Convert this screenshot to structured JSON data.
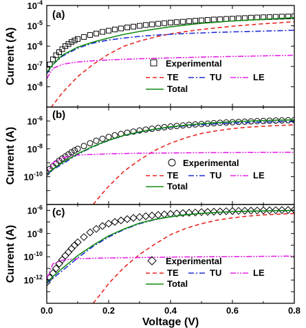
{
  "chart_data": {
    "type": "line",
    "xlabel": "Voltage (V)",
    "x_ticks": [
      "0.0",
      "0.2",
      "0.4",
      "0.6",
      "0.8"
    ],
    "xlim": [
      0.0,
      0.8
    ],
    "ylabel": "Current (A)",
    "yscale": "log",
    "colors": {
      "Experimental": "#000000",
      "TE": "#e8231f",
      "TU": "#1f2bd6",
      "LE": "#e61ee6",
      "Total": "#108a10"
    },
    "panels": [
      {
        "label": "(a)",
        "ylim_exp": [
          -9,
          -4
        ],
        "y_ticks": [
          {
            "base": "10",
            "exp": "-8",
            "v": -8
          },
          {
            "base": "10",
            "exp": "-7",
            "v": -7
          },
          {
            "base": "10",
            "exp": "-6",
            "v": -6
          },
          {
            "base": "10",
            "exp": "-5",
            "v": -5
          },
          {
            "base": "10",
            "exp": "-4",
            "v": -4
          }
        ],
        "marker": "square",
        "legend": {
          "experimental": "Experimental",
          "te": "TE",
          "tu": "TU",
          "le": "LE",
          "total": "Total"
        },
        "series": [
          {
            "name": "Experimental",
            "style": "marker",
            "x": [
              0.0,
              0.01,
              0.02,
              0.03,
              0.04,
              0.05,
              0.06,
              0.07,
              0.08,
              0.09,
              0.1,
              0.12,
              0.14,
              0.16,
              0.18,
              0.2,
              0.22,
              0.24,
              0.26,
              0.28,
              0.3,
              0.32,
              0.34,
              0.36,
              0.38,
              0.4,
              0.42,
              0.44,
              0.46,
              0.48,
              0.5,
              0.52,
              0.54,
              0.56,
              0.58,
              0.6,
              0.62,
              0.64,
              0.66,
              0.68,
              0.7,
              0.72,
              0.74,
              0.76,
              0.78,
              0.8
            ],
            "log10y": [
              -7.15,
              -6.9,
              -6.65,
              -6.45,
              -6.3,
              -6.15,
              -6.0,
              -5.9,
              -5.8,
              -5.72,
              -5.65,
              -5.55,
              -5.45,
              -5.38,
              -5.3,
              -5.24,
              -5.18,
              -5.13,
              -5.08,
              -5.04,
              -5.0,
              -4.96,
              -4.93,
              -4.9,
              -4.87,
              -4.84,
              -4.82,
              -4.8,
              -4.77,
              -4.75,
              -4.73,
              -4.71,
              -4.69,
              -4.68,
              -4.66,
              -4.65,
              -4.63,
              -4.62,
              -4.6,
              -4.59,
              -4.58,
              -4.57,
              -4.56,
              -4.55,
              -4.54,
              -4.53
            ]
          },
          {
            "name": "TE",
            "style": "dash",
            "x": [
              0.0,
              0.05,
              0.1,
              0.15,
              0.2,
              0.25,
              0.3,
              0.35,
              0.4,
              0.45,
              0.5,
              0.55,
              0.6,
              0.65,
              0.7,
              0.75,
              0.8
            ],
            "log10y": [
              -9.3,
              -8.3,
              -7.5,
              -6.9,
              -6.4,
              -6.0,
              -5.75,
              -5.55,
              -5.4,
              -5.28,
              -5.18,
              -5.1,
              -5.02,
              -4.96,
              -4.9,
              -4.85,
              -4.8
            ]
          },
          {
            "name": "TU",
            "style": "dashdot",
            "x": [
              0.0,
              0.02,
              0.05,
              0.1,
              0.15,
              0.2,
              0.25,
              0.3,
              0.35,
              0.4,
              0.45,
              0.5,
              0.55,
              0.6,
              0.65,
              0.7,
              0.75,
              0.8
            ],
            "log10y": [
              -7.35,
              -6.9,
              -6.5,
              -6.1,
              -5.85,
              -5.7,
              -5.6,
              -5.52,
              -5.46,
              -5.42,
              -5.38,
              -5.35,
              -5.32,
              -5.3,
              -5.28,
              -5.26,
              -5.24,
              -5.22
            ]
          },
          {
            "name": "LE",
            "style": "dashdotdot",
            "x": [
              0.0,
              0.02,
              0.05,
              0.08,
              0.1,
              0.15,
              0.2,
              0.3,
              0.4,
              0.5,
              0.6,
              0.7,
              0.8
            ],
            "log10y": [
              -7.6,
              -7.1,
              -6.9,
              -6.82,
              -6.78,
              -6.72,
              -6.68,
              -6.62,
              -6.58,
              -6.54,
              -6.51,
              -6.48,
              -6.45
            ]
          },
          {
            "name": "Total",
            "style": "solid",
            "x": [
              0.0,
              0.02,
              0.05,
              0.1,
              0.15,
              0.2,
              0.25,
              0.3,
              0.35,
              0.4,
              0.45,
              0.5,
              0.55,
              0.6,
              0.65,
              0.7,
              0.75,
              0.8
            ],
            "log10y": [
              -7.3,
              -6.9,
              -6.45,
              -6.05,
              -5.8,
              -5.6,
              -5.42,
              -5.28,
              -5.16,
              -5.05,
              -4.96,
              -4.88,
              -4.82,
              -4.76,
              -4.72,
              -4.68,
              -4.64,
              -4.6
            ]
          }
        ]
      },
      {
        "label": "(b)",
        "ylim_exp": [
          -12,
          -5
        ],
        "y_ticks": [
          {
            "base": "10",
            "exp": "-10",
            "v": -10
          },
          {
            "base": "10",
            "exp": "-8",
            "v": -8
          },
          {
            "base": "10",
            "exp": "-6",
            "v": -6
          }
        ],
        "marker": "circle",
        "legend": {
          "experimental": "Experimental",
          "te": "TE",
          "tu": "TU",
          "le": "LE",
          "total": "Total"
        },
        "series": [
          {
            "name": "Experimental",
            "style": "marker",
            "x": [
              0.0,
              0.01,
              0.02,
              0.03,
              0.04,
              0.05,
              0.06,
              0.07,
              0.08,
              0.09,
              0.1,
              0.12,
              0.14,
              0.16,
              0.18,
              0.2,
              0.22,
              0.24,
              0.26,
              0.28,
              0.3,
              0.32,
              0.34,
              0.36,
              0.38,
              0.4,
              0.42,
              0.44,
              0.46,
              0.48,
              0.5,
              0.52,
              0.54,
              0.56,
              0.58,
              0.6,
              0.62,
              0.64,
              0.66,
              0.68,
              0.7,
              0.72,
              0.74,
              0.76,
              0.78,
              0.8
            ],
            "log10y": [
              -9.7,
              -9.45,
              -9.25,
              -9.05,
              -8.85,
              -8.7,
              -8.55,
              -8.4,
              -8.25,
              -8.12,
              -8.0,
              -7.8,
              -7.6,
              -7.42,
              -7.28,
              -7.15,
              -7.03,
              -6.93,
              -6.84,
              -6.76,
              -6.68,
              -6.62,
              -6.56,
              -6.5,
              -6.45,
              -6.4,
              -6.36,
              -6.32,
              -6.28,
              -6.25,
              -6.22,
              -6.19,
              -6.16,
              -6.13,
              -6.11,
              -6.09,
              -6.07,
              -6.05,
              -6.03,
              -6.01,
              -6.0,
              -5.98,
              -5.97,
              -5.96,
              -5.95,
              -5.94
            ]
          },
          {
            "name": "TE",
            "style": "dash",
            "x": [
              0.15,
              0.18,
              0.2,
              0.25,
              0.3,
              0.35,
              0.4,
              0.45,
              0.5,
              0.55,
              0.6,
              0.65,
              0.7,
              0.75,
              0.8
            ],
            "log10y": [
              -12.0,
              -11.2,
              -10.7,
              -9.6,
              -8.8,
              -8.1,
              -7.6,
              -7.2,
              -6.9,
              -6.7,
              -6.55,
              -6.45,
              -6.38,
              -6.32,
              -6.28
            ]
          },
          {
            "name": "TU",
            "style": "dashdot",
            "x": [
              0.0,
              0.02,
              0.05,
              0.1,
              0.15,
              0.2,
              0.25,
              0.3,
              0.35,
              0.4,
              0.45,
              0.5,
              0.55,
              0.6,
              0.65,
              0.7,
              0.75,
              0.8
            ],
            "log10y": [
              -9.85,
              -9.5,
              -9.1,
              -8.4,
              -7.85,
              -7.4,
              -7.05,
              -6.8,
              -6.6,
              -6.45,
              -6.35,
              -6.27,
              -6.2,
              -6.15,
              -6.11,
              -6.08,
              -6.05,
              -6.03
            ]
          },
          {
            "name": "LE",
            "style": "dashdotdot",
            "x": [
              0.0,
              0.02,
              0.05,
              0.08,
              0.1,
              0.15,
              0.2,
              0.3,
              0.4,
              0.5,
              0.6,
              0.7,
              0.8
            ],
            "log10y": [
              -9.9,
              -9.0,
              -8.65,
              -8.5,
              -8.45,
              -8.4,
              -8.36,
              -8.32,
              -8.3,
              -8.28,
              -8.27,
              -8.26,
              -8.25
            ]
          },
          {
            "name": "Total",
            "style": "solid",
            "x": [
              0.0,
              0.02,
              0.05,
              0.1,
              0.15,
              0.2,
              0.25,
              0.3,
              0.35,
              0.4,
              0.45,
              0.5,
              0.55,
              0.6,
              0.65,
              0.7,
              0.75,
              0.8
            ],
            "log10y": [
              -9.8,
              -9.45,
              -9.0,
              -8.35,
              -7.82,
              -7.38,
              -7.03,
              -6.78,
              -6.58,
              -6.42,
              -6.3,
              -6.2,
              -6.12,
              -6.06,
              -6.01,
              -5.97,
              -5.94,
              -5.92
            ]
          }
        ]
      },
      {
        "label": "(c)",
        "ylim_exp": [
          -14,
          -5.5
        ],
        "y_ticks": [
          {
            "base": "10",
            "exp": "-12",
            "v": -12
          },
          {
            "base": "10",
            "exp": "-10",
            "v": -10
          },
          {
            "base": "10",
            "exp": "-8",
            "v": -8
          },
          {
            "base": "10",
            "exp": "-6",
            "v": -6
          }
        ],
        "marker": "diamond",
        "legend": {
          "experimental": "Experimental",
          "te": "TE",
          "tu": "TU",
          "le": "LE",
          "total": "Total"
        },
        "series": [
          {
            "name": "Experimental",
            "style": "marker",
            "x": [
              0.0,
              0.01,
              0.02,
              0.03,
              0.04,
              0.05,
              0.06,
              0.07,
              0.08,
              0.09,
              0.1,
              0.12,
              0.14,
              0.16,
              0.18,
              0.2,
              0.22,
              0.24,
              0.26,
              0.28,
              0.3,
              0.32,
              0.34,
              0.36,
              0.38,
              0.4,
              0.42,
              0.44,
              0.46,
              0.48,
              0.5,
              0.52,
              0.54,
              0.56,
              0.58,
              0.6,
              0.62,
              0.64,
              0.66,
              0.68,
              0.7,
              0.72,
              0.74,
              0.76,
              0.78,
              0.8
            ],
            "log10y": [
              -12.2,
              -11.8,
              -11.4,
              -11.0,
              -10.6,
              -10.25,
              -9.9,
              -9.6,
              -9.3,
              -9.0,
              -8.75,
              -8.3,
              -7.9,
              -7.6,
              -7.35,
              -7.15,
              -7.0,
              -6.87,
              -6.76,
              -6.66,
              -6.58,
              -6.51,
              -6.45,
              -6.4,
              -6.35,
              -6.31,
              -6.27,
              -6.24,
              -6.21,
              -6.19,
              -6.16,
              -6.14,
              -6.12,
              -6.1,
              -6.08,
              -6.07,
              -6.05,
              -6.04,
              -6.03,
              -6.02,
              -6.01,
              -6.0,
              -5.99,
              -5.98,
              -5.97,
              -5.96
            ]
          },
          {
            "name": "TE",
            "style": "dash",
            "x": [
              0.15,
              0.18,
              0.2,
              0.25,
              0.3,
              0.35,
              0.4,
              0.45,
              0.5,
              0.55,
              0.6,
              0.65,
              0.7,
              0.75,
              0.8
            ],
            "log10y": [
              -14.0,
              -13.0,
              -12.3,
              -10.9,
              -9.8,
              -8.9,
              -8.1,
              -7.55,
              -7.15,
              -6.85,
              -6.65,
              -6.5,
              -6.4,
              -6.33,
              -6.28
            ]
          },
          {
            "name": "TU",
            "style": "dashdot",
            "x": [
              0.0,
              0.02,
              0.05,
              0.1,
              0.15,
              0.2,
              0.25,
              0.3,
              0.35,
              0.4,
              0.45,
              0.5,
              0.55,
              0.6,
              0.65,
              0.7,
              0.75,
              0.8
            ],
            "log10y": [
              -12.3,
              -11.85,
              -11.2,
              -10.1,
              -9.1,
              -8.3,
              -7.65,
              -7.15,
              -6.8,
              -6.55,
              -6.38,
              -6.26,
              -6.18,
              -6.12,
              -6.08,
              -6.05,
              -6.03,
              -6.01
            ]
          },
          {
            "name": "LE",
            "style": "dashdotdot",
            "x": [
              0.0,
              0.02,
              0.05,
              0.08,
              0.1,
              0.15,
              0.2,
              0.3,
              0.4,
              0.5,
              0.6,
              0.7,
              0.8
            ],
            "log10y": [
              -11.9,
              -10.6,
              -10.3,
              -10.2,
              -10.17,
              -10.13,
              -10.1,
              -10.06,
              -10.03,
              -10.0,
              -9.98,
              -9.96,
              -9.94
            ]
          },
          {
            "name": "Total",
            "style": "solid",
            "x": [
              0.0,
              0.02,
              0.05,
              0.1,
              0.15,
              0.2,
              0.25,
              0.3,
              0.35,
              0.4,
              0.45,
              0.5,
              0.55,
              0.6,
              0.65,
              0.7,
              0.75,
              0.8
            ],
            "log10y": [
              -12.2,
              -11.7,
              -11.0,
              -9.9,
              -9.0,
              -8.2,
              -7.6,
              -7.1,
              -6.78,
              -6.55,
              -6.38,
              -6.26,
              -6.18,
              -6.12,
              -6.08,
              -6.05,
              -6.03,
              -6.01
            ]
          }
        ]
      }
    ]
  }
}
